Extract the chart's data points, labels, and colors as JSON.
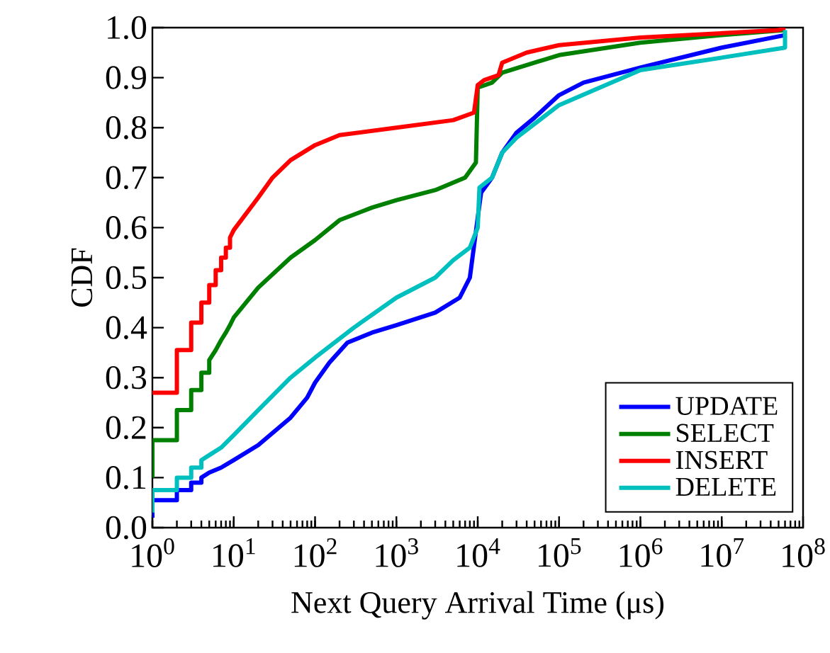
{
  "chart_data": {
    "type": "line",
    "xlabel": "Next Query Arrival Time (μs)",
    "ylabel": "CDF",
    "log": "x",
    "grid": false,
    "legend": "bottom right",
    "marker": "none",
    "line_style": "solid",
    "xlim": [
      1,
      100000000
    ],
    "ylim": [
      0,
      1
    ],
    "xticks": [
      {
        "value": 1,
        "label": "10$^{0}$"
      },
      {
        "value": 10,
        "label": "10$^{1}$"
      },
      {
        "value": 100,
        "label": "10$^{2}$"
      },
      {
        "value": 1000,
        "label": "10$^{3}$"
      },
      {
        "value": 10000,
        "label": "10$^{4}$"
      },
      {
        "value": 100000,
        "label": "10$^{5}$"
      },
      {
        "value": 1000000,
        "label": "10$^{6}$"
      },
      {
        "value": 10000000,
        "label": "10$^{7}$"
      },
      {
        "value": 100000000,
        "label": "10$^{8}$"
      }
    ],
    "yticks": [
      {
        "value": 0,
        "label": "0.0"
      },
      {
        "value": 0.1,
        "label": "0.1"
      },
      {
        "value": 0.2,
        "label": "0.2"
      },
      {
        "value": 0.3,
        "label": "0.3"
      },
      {
        "value": 0.4,
        "label": "0.4"
      },
      {
        "value": 0.5,
        "label": "0.5"
      },
      {
        "value": 0.6,
        "label": "0.6"
      },
      {
        "value": 0.7,
        "label": "0.7"
      },
      {
        "value": 0.8,
        "label": "0.8"
      },
      {
        "value": 0.9,
        "label": "0.9"
      },
      {
        "value": 1,
        "label": "1.0"
      }
    ],
    "series": [
      {
        "name": "UPDATE",
        "color": "#0000ff",
        "x": [
          1,
          1,
          2,
          2,
          3,
          3,
          4,
          4,
          5,
          7,
          10,
          20,
          50,
          80,
          100,
          150,
          250,
          500,
          1000,
          3000,
          6000,
          8000,
          10000,
          11000,
          15000,
          20000,
          30000,
          50000,
          100000,
          200000,
          1000000,
          10000000,
          60000000
        ],
        "values": [
          0.02,
          0.055,
          0.055,
          0.075,
          0.075,
          0.09,
          0.09,
          0.1,
          0.11,
          0.12,
          0.135,
          0.165,
          0.22,
          0.26,
          0.29,
          0.33,
          0.37,
          0.39,
          0.405,
          0.43,
          0.46,
          0.5,
          0.62,
          0.67,
          0.7,
          0.75,
          0.79,
          0.82,
          0.865,
          0.89,
          0.92,
          0.96,
          0.985
        ]
      },
      {
        "name": "SELECT",
        "color": "#008000",
        "x": [
          1,
          1,
          2,
          2,
          3,
          3,
          4,
          4,
          5,
          5,
          6,
          7,
          8,
          9,
          10,
          20,
          50,
          100,
          200,
          500,
          1000,
          3000,
          7000,
          9500,
          10000,
          15000,
          20000,
          40000,
          100000,
          1000000,
          10000000,
          60000000
        ],
        "values": [
          0.1,
          0.175,
          0.175,
          0.235,
          0.235,
          0.275,
          0.275,
          0.31,
          0.31,
          0.335,
          0.355,
          0.375,
          0.39,
          0.405,
          0.42,
          0.48,
          0.54,
          0.575,
          0.615,
          0.64,
          0.655,
          0.675,
          0.7,
          0.73,
          0.88,
          0.89,
          0.91,
          0.925,
          0.945,
          0.97,
          0.985,
          0.995
        ]
      },
      {
        "name": "INSERT",
        "color": "#ff0000",
        "x": [
          1,
          2,
          2,
          3,
          3,
          4,
          4,
          5,
          5,
          6,
          6,
          7,
          7,
          8,
          8,
          9,
          9,
          10,
          20,
          30,
          50,
          100,
          200,
          1000,
          5000,
          9000,
          10000,
          12000,
          18000,
          20000,
          40000,
          100000,
          1000000,
          50000000,
          60000000
        ],
        "values": [
          0.27,
          0.27,
          0.355,
          0.355,
          0.41,
          0.41,
          0.45,
          0.45,
          0.485,
          0.485,
          0.515,
          0.515,
          0.54,
          0.54,
          0.56,
          0.56,
          0.58,
          0.595,
          0.66,
          0.7,
          0.735,
          0.765,
          0.785,
          0.8,
          0.815,
          0.83,
          0.885,
          0.895,
          0.905,
          0.93,
          0.95,
          0.965,
          0.98,
          0.995,
          1.0
        ]
      },
      {
        "name": "DELETE",
        "color": "#00bfbf",
        "x": [
          1,
          1,
          2,
          2,
          3,
          3,
          4,
          4,
          5,
          7,
          10,
          20,
          50,
          100,
          300,
          1000,
          3000,
          5000,
          8000,
          10000,
          10500,
          15000,
          20000,
          30000,
          100000,
          1000000,
          10000000,
          60000000,
          60000000
        ],
        "values": [
          0.03,
          0.075,
          0.075,
          0.1,
          0.1,
          0.12,
          0.12,
          0.135,
          0.145,
          0.16,
          0.185,
          0.235,
          0.3,
          0.34,
          0.4,
          0.46,
          0.5,
          0.535,
          0.56,
          0.6,
          0.68,
          0.7,
          0.75,
          0.78,
          0.845,
          0.915,
          0.94,
          0.96,
          0.995
        ]
      }
    ]
  }
}
